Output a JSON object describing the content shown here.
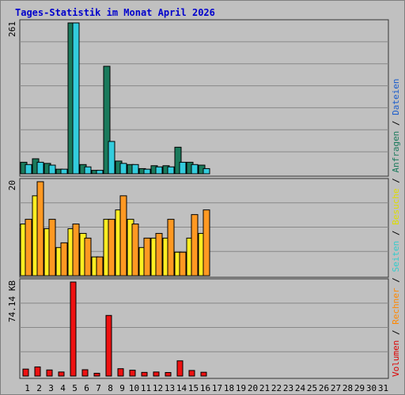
{
  "title": "Tages-Statistik im Monat April 2026",
  "chart_data": {
    "type": "bar",
    "categories": [
      "1",
      "2",
      "3",
      "4",
      "5",
      "6",
      "7",
      "8",
      "9",
      "10",
      "11",
      "12",
      "13",
      "14",
      "15",
      "16",
      "17",
      "18",
      "19",
      "20",
      "21",
      "22",
      "23",
      "24",
      "25",
      "26",
      "27",
      "28",
      "29",
      "30",
      "31"
    ],
    "weekend_days": [
      "4",
      "5",
      "11",
      "12",
      "18",
      "19",
      "25",
      "26"
    ],
    "panels": [
      {
        "id": "top",
        "max_label": "261",
        "ymax": 261,
        "legend": [
          {
            "label": "Anfragen",
            "color": "#1a7a5c"
          },
          {
            "label": "Dateien",
            "color": "#1a5ccc"
          }
        ],
        "series": [
          {
            "name": "Anfragen",
            "color": "#1a7a5c",
            "values": [
              20,
              26,
              18,
              8,
              261,
              16,
              6,
              186,
              22,
              16,
              9,
              14,
              14,
              46,
              20,
              15,
              0,
              0,
              0,
              0,
              0,
              0,
              0,
              0,
              0,
              0,
              0,
              0,
              0,
              0,
              0
            ]
          },
          {
            "name": "Dateien",
            "color": "#33ccdd",
            "values": [
              16,
              20,
              15,
              8,
              261,
              12,
              6,
              56,
              18,
              16,
              8,
              12,
              12,
              20,
              16,
              9,
              0,
              0,
              0,
              0,
              0,
              0,
              0,
              0,
              0,
              0,
              0,
              0,
              0,
              0,
              0
            ]
          }
        ]
      },
      {
        "id": "middle",
        "max_label": "20",
        "ymax": 20,
        "legend": [
          {
            "label": "Seiten",
            "color": "#33cccc"
          },
          {
            "label": "Besuche",
            "color": "#dddd00"
          }
        ],
        "series": [
          {
            "name": "Besuche",
            "color": "#ffee22",
            "values": [
              11,
              17,
              10,
              6,
              10,
              9,
              4,
              12,
              14,
              12,
              6,
              8,
              8,
              5,
              8,
              9,
              0,
              0,
              0,
              0,
              0,
              0,
              0,
              0,
              0,
              0,
              0,
              0,
              0,
              0,
              0
            ]
          },
          {
            "name": "Seiten",
            "color": "#ff9922",
            "values": [
              12,
              20,
              12,
              7,
              11,
              8,
              4,
              12,
              17,
              11,
              8,
              9,
              12,
              5,
              13,
              14,
              0,
              0,
              0,
              0,
              0,
              0,
              0,
              0,
              0,
              0,
              0,
              0,
              0,
              0,
              0
            ]
          }
        ]
      },
      {
        "id": "bottom",
        "max_label": "74.14 KB",
        "ymax": 74.14,
        "legend": [
          {
            "label": "Volumen",
            "color": "#dd0000"
          },
          {
            "label": "Rechner",
            "color": "#ff8800"
          }
        ],
        "series": [
          {
            "name": "Volumen",
            "color": "#ee1111",
            "values": [
              5.5,
              7.2,
              4.8,
              3.2,
              74.14,
              5.0,
              2.2,
              47.8,
              5.8,
              4.6,
              2.9,
              3.2,
              2.8,
              12.0,
              4.4,
              3.0,
              0,
              0,
              0,
              0,
              0,
              0,
              0,
              0,
              0,
              0,
              0,
              0,
              0,
              0,
              0
            ]
          }
        ]
      }
    ]
  }
}
